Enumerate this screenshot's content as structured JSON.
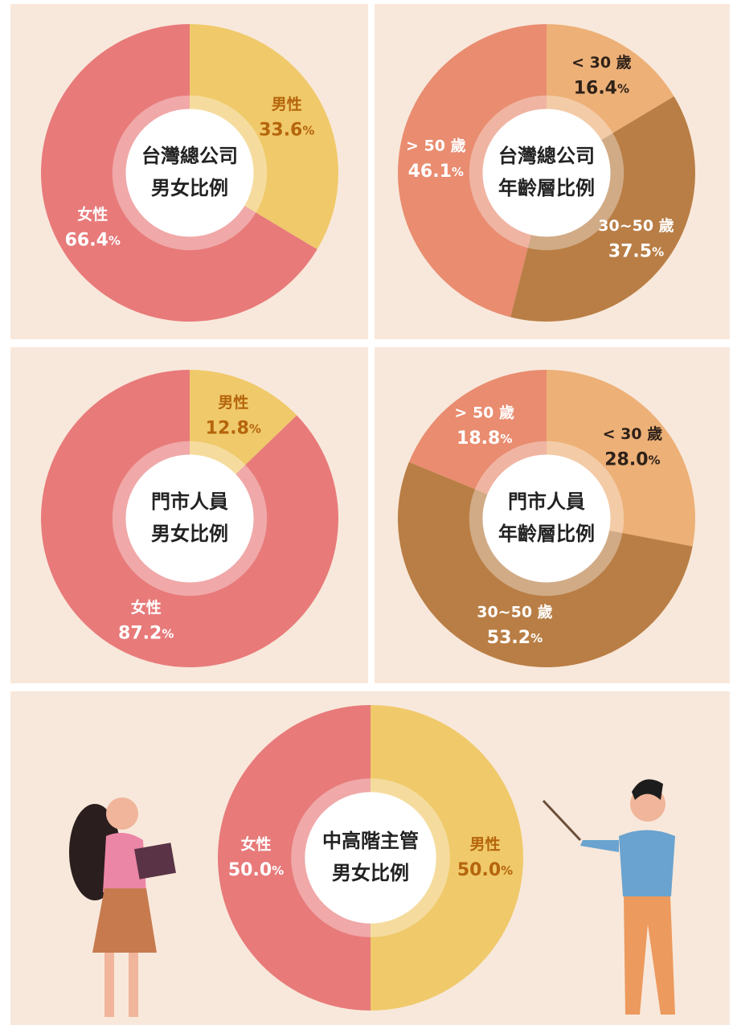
{
  "chart_data": [
    {
      "type": "pie",
      "center_title": [
        "台灣總公司",
        "男女比例"
      ],
      "categories": [
        "男性",
        "女性"
      ],
      "values": [
        33.6,
        66.4
      ],
      "value_labels": [
        "33.6%",
        "66.4%"
      ],
      "colors": [
        "#f0c96a",
        "#e87a7a"
      ],
      "label_colors": [
        "#b5650c",
        "#ffffff"
      ]
    },
    {
      "type": "pie",
      "center_title": [
        "台灣總公司",
        "年齡層比例"
      ],
      "categories": [
        "< 30 歲",
        "30~50 歲",
        "> 50 歲"
      ],
      "values": [
        16.4,
        37.5,
        46.1
      ],
      "value_labels": [
        "16.4%",
        "37.5%",
        "46.1%"
      ],
      "colors": [
        "#edb077",
        "#b97e45",
        "#e98c70"
      ],
      "label_colors": [
        "#2e2118",
        "#ffffff",
        "#ffffff"
      ]
    },
    {
      "type": "pie",
      "center_title": [
        "門市人員",
        "男女比例"
      ],
      "categories": [
        "男性",
        "女性"
      ],
      "values": [
        12.8,
        87.2
      ],
      "value_labels": [
        "12.8%",
        "87.2%"
      ],
      "colors": [
        "#f0c96a",
        "#e87a7a"
      ],
      "label_colors": [
        "#b5650c",
        "#ffffff"
      ]
    },
    {
      "type": "pie",
      "center_title": [
        "門市人員",
        "年齡層比例"
      ],
      "categories": [
        "< 30 歲",
        "30~50 歲",
        "> 50 歲"
      ],
      "values": [
        28.0,
        53.2,
        18.8
      ],
      "value_labels": [
        "28.0%",
        "53.2%",
        "18.8%"
      ],
      "colors": [
        "#edb077",
        "#b97e45",
        "#e98c70"
      ],
      "label_colors": [
        "#2e2118",
        "#ffffff",
        "#ffffff"
      ]
    },
    {
      "type": "pie",
      "center_title": [
        "中高階主管",
        "男女比例"
      ],
      "categories": [
        "男性",
        "女性"
      ],
      "values": [
        50.0,
        50.0
      ],
      "value_labels": [
        "50.0%",
        "50.0%"
      ],
      "colors": [
        "#f0c96a",
        "#e87a7a"
      ],
      "label_colors": [
        "#b5650c",
        "#ffffff"
      ]
    }
  ]
}
